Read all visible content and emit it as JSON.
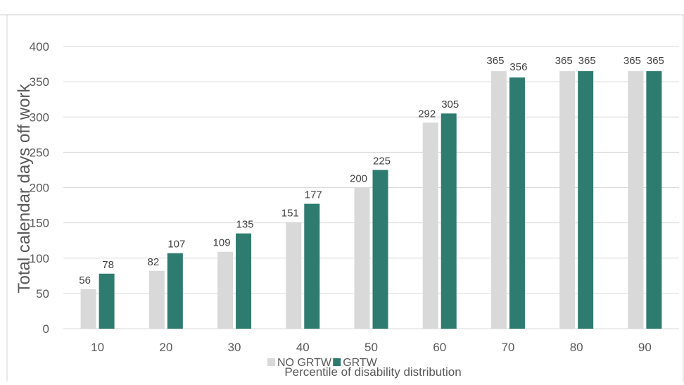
{
  "chart_data": {
    "type": "bar",
    "categories": [
      "10",
      "20",
      "30",
      "40",
      "50",
      "60",
      "70",
      "80",
      "90"
    ],
    "series": [
      {
        "name": "NO GRTW",
        "color": "#d9d9d9",
        "values": [
          56,
          82,
          109,
          151,
          200,
          292,
          365,
          365,
          365
        ]
      },
      {
        "name": "GRTW",
        "color": "#2e7b6f",
        "values": [
          78,
          107,
          135,
          177,
          225,
          305,
          356,
          365,
          365
        ]
      }
    ],
    "xlabel": "Percentile of disability distribution",
    "ylabel": "Total calendar days off work",
    "ylim": [
      0,
      400
    ],
    "yticks": [
      0,
      50,
      100,
      150,
      200,
      250,
      300,
      350,
      400
    ],
    "grid": true,
    "legend_position": "bottom"
  }
}
